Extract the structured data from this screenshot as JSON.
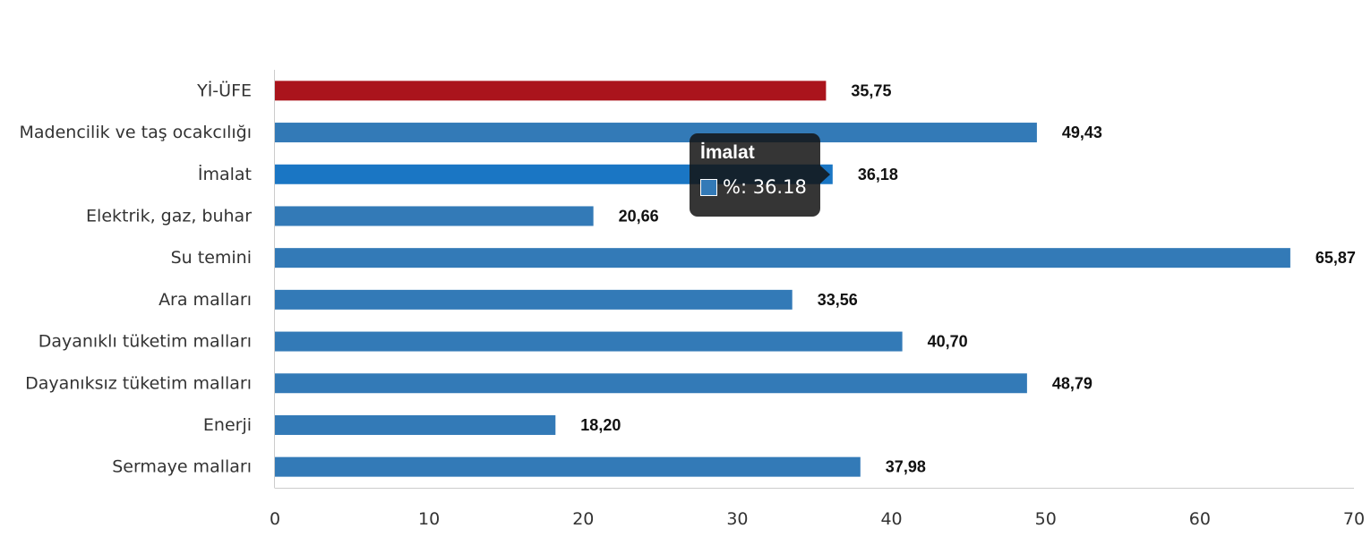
{
  "chart_data": {
    "type": "bar",
    "orientation": "horizontal",
    "categories": [
      "Yİ-ÜFE",
      "Madencilik ve taş ocakcılığı",
      "İmalat",
      "Elektrik, gaz, buhar",
      "Su temini",
      "Ara malları",
      "Dayanıklı tüketim malları",
      "Dayanıksız tüketim malları",
      "Enerji",
      "Sermaye malları"
    ],
    "values": [
      35.75,
      49.43,
      36.18,
      20.66,
      65.87,
      33.56,
      40.7,
      48.79,
      18.2,
      37.98
    ],
    "value_labels": [
      "35,75",
      "49,43",
      "36,18",
      "20,66",
      "65,87",
      "33,56",
      "40,70",
      "48,79",
      "18,20",
      "37,98"
    ],
    "colors": [
      "#aa141c",
      "#337ab7",
      "#1a76c4",
      "#337ab7",
      "#337ab7",
      "#337ab7",
      "#337ab7",
      "#337ab7",
      "#337ab7",
      "#337ab7"
    ],
    "xlim": [
      0,
      70
    ],
    "xticks": [
      "0",
      "10",
      "20",
      "30",
      "40",
      "50",
      "60",
      "70"
    ],
    "grid": false,
    "title": "",
    "xlabel": "",
    "ylabel": ""
  },
  "tooltip": {
    "title": "İmalat",
    "text": "%: 36.18",
    "swatch_color": "#337ab7"
  }
}
